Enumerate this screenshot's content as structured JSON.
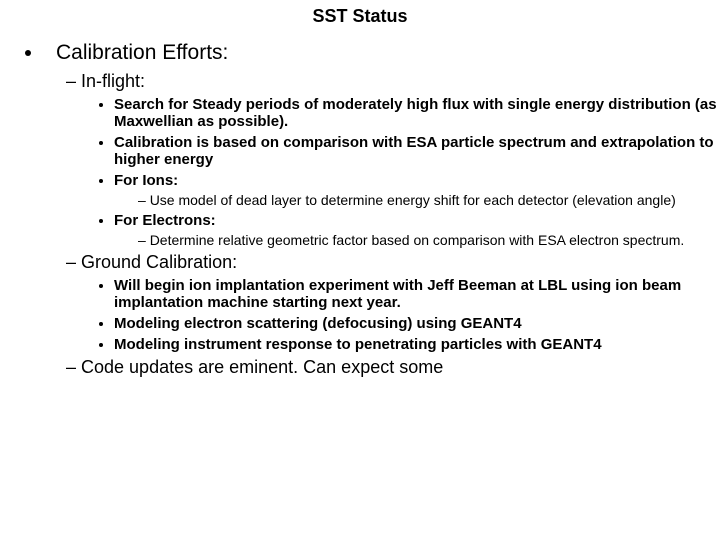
{
  "title": "SST Status",
  "l1": {
    "item1": "Calibration Efforts:"
  },
  "l2": {
    "inflight": "In-flight:",
    "ground": "Ground Calibration:",
    "code": "Code updates are eminent. Can expect some"
  },
  "l3": {
    "inflight1": "Search for Steady periods of moderately high flux with single energy distribution (as Maxwellian as possible).",
    "inflight2": "Calibration is based on comparison with ESA particle spectrum and extrapolation to higher energy",
    "inflight3": "For Ions:",
    "inflight4": "For Electrons:",
    "ground1": "Will begin ion implantation experiment with Jeff Beeman at LBL using ion beam implantation machine starting next year.",
    "ground2": "Modeling electron scattering (defocusing) using GEANT4",
    "ground3": "Modeling instrument response to penetrating particles with GEANT4"
  },
  "l4": {
    "ions1": "Use model of dead layer to determine energy shift for each detector (elevation angle)",
    "electrons1": "Determine relative geometric factor based on comparison with ESA electron spectrum."
  }
}
